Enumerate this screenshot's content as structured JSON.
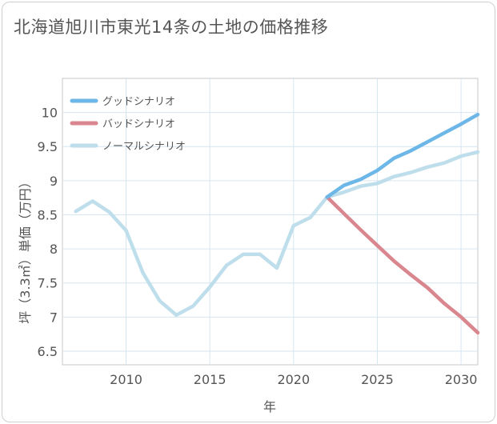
{
  "title": "北海道旭川市東光14条の土地の価格推移",
  "chart_data": {
    "type": "line",
    "title": "北海道旭川市東光14条の土地の価格推移",
    "xlabel": "年",
    "ylabel": "坪（3.3㎡）単価（万円）",
    "xlim": [
      2006.2,
      2031
    ],
    "ylim": [
      6.3,
      10.5
    ],
    "xticks": [
      2010,
      2015,
      2020,
      2025,
      2030
    ],
    "yticks": [
      6.5,
      7,
      7.5,
      8,
      8.5,
      9,
      9.5,
      10
    ],
    "ytick_labels": [
      "6.5",
      "7",
      "7.5",
      "8",
      "8.5",
      "9",
      "9.5",
      "10"
    ],
    "grid": true,
    "legend_position": "top-left",
    "series": [
      {
        "name": "グッドシナリオ",
        "color": "#6cb6e8",
        "x": [
          2022,
          2023,
          2024,
          2025,
          2026,
          2027,
          2028,
          2029,
          2030,
          2031
        ],
        "y": [
          8.76,
          8.93,
          9.02,
          9.15,
          9.33,
          9.44,
          9.57,
          9.7,
          9.83,
          9.97
        ]
      },
      {
        "name": "バッドシナリオ",
        "color": "#d9868e",
        "x": [
          2022,
          2023,
          2024,
          2025,
          2026,
          2027,
          2028,
          2029,
          2030,
          2031
        ],
        "y": [
          8.76,
          8.52,
          8.28,
          8.05,
          7.82,
          7.62,
          7.43,
          7.2,
          7.0,
          6.77
        ]
      },
      {
        "name": "ノーマルシナリオ",
        "color": "#bfdeec",
        "x": [
          2007,
          2008,
          2009,
          2010,
          2011,
          2012,
          2013,
          2014,
          2015,
          2016,
          2017,
          2018,
          2019,
          2020,
          2021,
          2022,
          2023,
          2024,
          2025,
          2026,
          2027,
          2028,
          2029,
          2030,
          2031
        ],
        "y": [
          8.55,
          8.7,
          8.54,
          8.27,
          7.65,
          7.24,
          7.03,
          7.16,
          7.44,
          7.76,
          7.92,
          7.92,
          7.72,
          8.34,
          8.46,
          8.76,
          8.83,
          8.92,
          8.96,
          9.06,
          9.12,
          9.2,
          9.26,
          9.36,
          9.42
        ]
      }
    ]
  }
}
